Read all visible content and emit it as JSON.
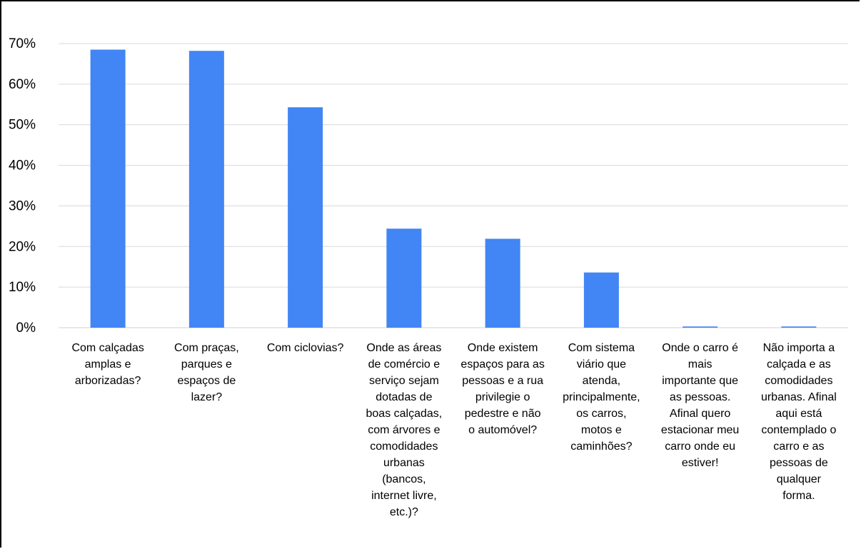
{
  "chart_data": {
    "type": "bar",
    "title": "",
    "xlabel": "",
    "ylabel": "",
    "ylim": [
      0,
      0.7
    ],
    "yticks": [
      "0%",
      "10%",
      "20%",
      "30%",
      "40%",
      "50%",
      "60%",
      "70%"
    ],
    "grid": true,
    "legend": "none",
    "bar_color": "#4285f4",
    "categories": [
      [
        "Com calçadas",
        "amplas e",
        "arborizadas?"
      ],
      [
        "Com praças,",
        "parques e",
        "espaços de",
        "lazer?"
      ],
      [
        "Com ciclovias?"
      ],
      [
        "Onde as áreas",
        "de comércio e",
        "serviço sejam",
        "dotadas de",
        "boas calçadas,",
        "com árvores e",
        "comodidades",
        "urbanas",
        "(bancos,",
        "internet livre,",
        "etc.)?"
      ],
      [
        "Onde existem",
        "espaços para as",
        "pessoas e a rua",
        "privilegie o",
        "pedestre e não",
        "o automóvel?"
      ],
      [
        "Com sistema",
        "viário que",
        "atenda,",
        "principalmente,",
        "os carros,",
        "motos e",
        "caminhões?"
      ],
      [
        "Onde o carro é",
        "mais",
        "importante que",
        "as pessoas.",
        "Afinal quero",
        "estacionar meu",
        "carro onde eu",
        "estiver!"
      ],
      [
        "Não importa a",
        "calçada e as",
        "comodidades",
        "urbanas. Afinal",
        "aqui está",
        "contemplado o",
        "carro e as",
        "pessoas de",
        "qualquer",
        "forma."
      ]
    ],
    "values": [
      0.685,
      0.682,
      0.543,
      0.244,
      0.219,
      0.136,
      0.003,
      0.003
    ]
  }
}
